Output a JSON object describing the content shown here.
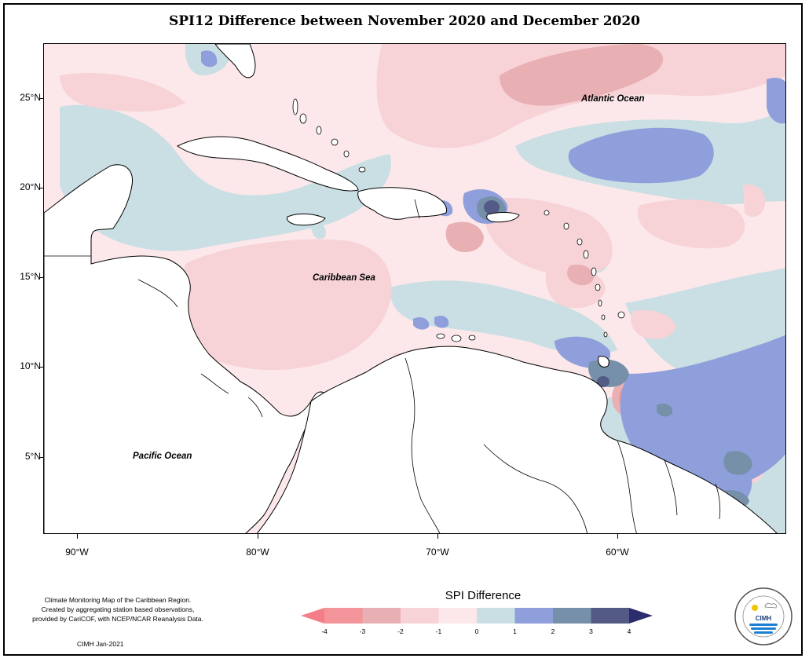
{
  "title": "SPI12 Difference between November 2020 and December 2020",
  "map": {
    "labels": {
      "atlantic": "Atlantic Ocean",
      "caribbean": "Caribbean Sea",
      "pacific": "Pacific Ocean"
    },
    "lat_ticks": [
      "25°N",
      "20°N",
      "15°N",
      "10°N",
      "5°N"
    ],
    "lon_ticks": [
      "90°W",
      "80°W",
      "70°W",
      "60°W"
    ]
  },
  "legend": {
    "title": "SPI Difference",
    "ticks": [
      "-4",
      "-3",
      "-2",
      "-1",
      "0",
      "1",
      "2",
      "3",
      "4"
    ],
    "colors": [
      "#f3949b",
      "#e9b0b4",
      "#f7d3d7",
      "#fce8ea",
      "#c9dfe4",
      "#8f9fdb",
      "#7590a8",
      "#535a86"
    ],
    "arrow_low": "#f47e88",
    "arrow_high": "#2c2d6c"
  },
  "footnote": {
    "line1": "Climate Monitoring Map of the Caribbean Region.",
    "line2": "Created by aggregating station based observations,",
    "line3": "provided by CariCOF, with NCEP/NCAR Reanalysis Data.",
    "credit": "CIMH Jan-2021"
  },
  "logo": {
    "text": "CIMH"
  }
}
